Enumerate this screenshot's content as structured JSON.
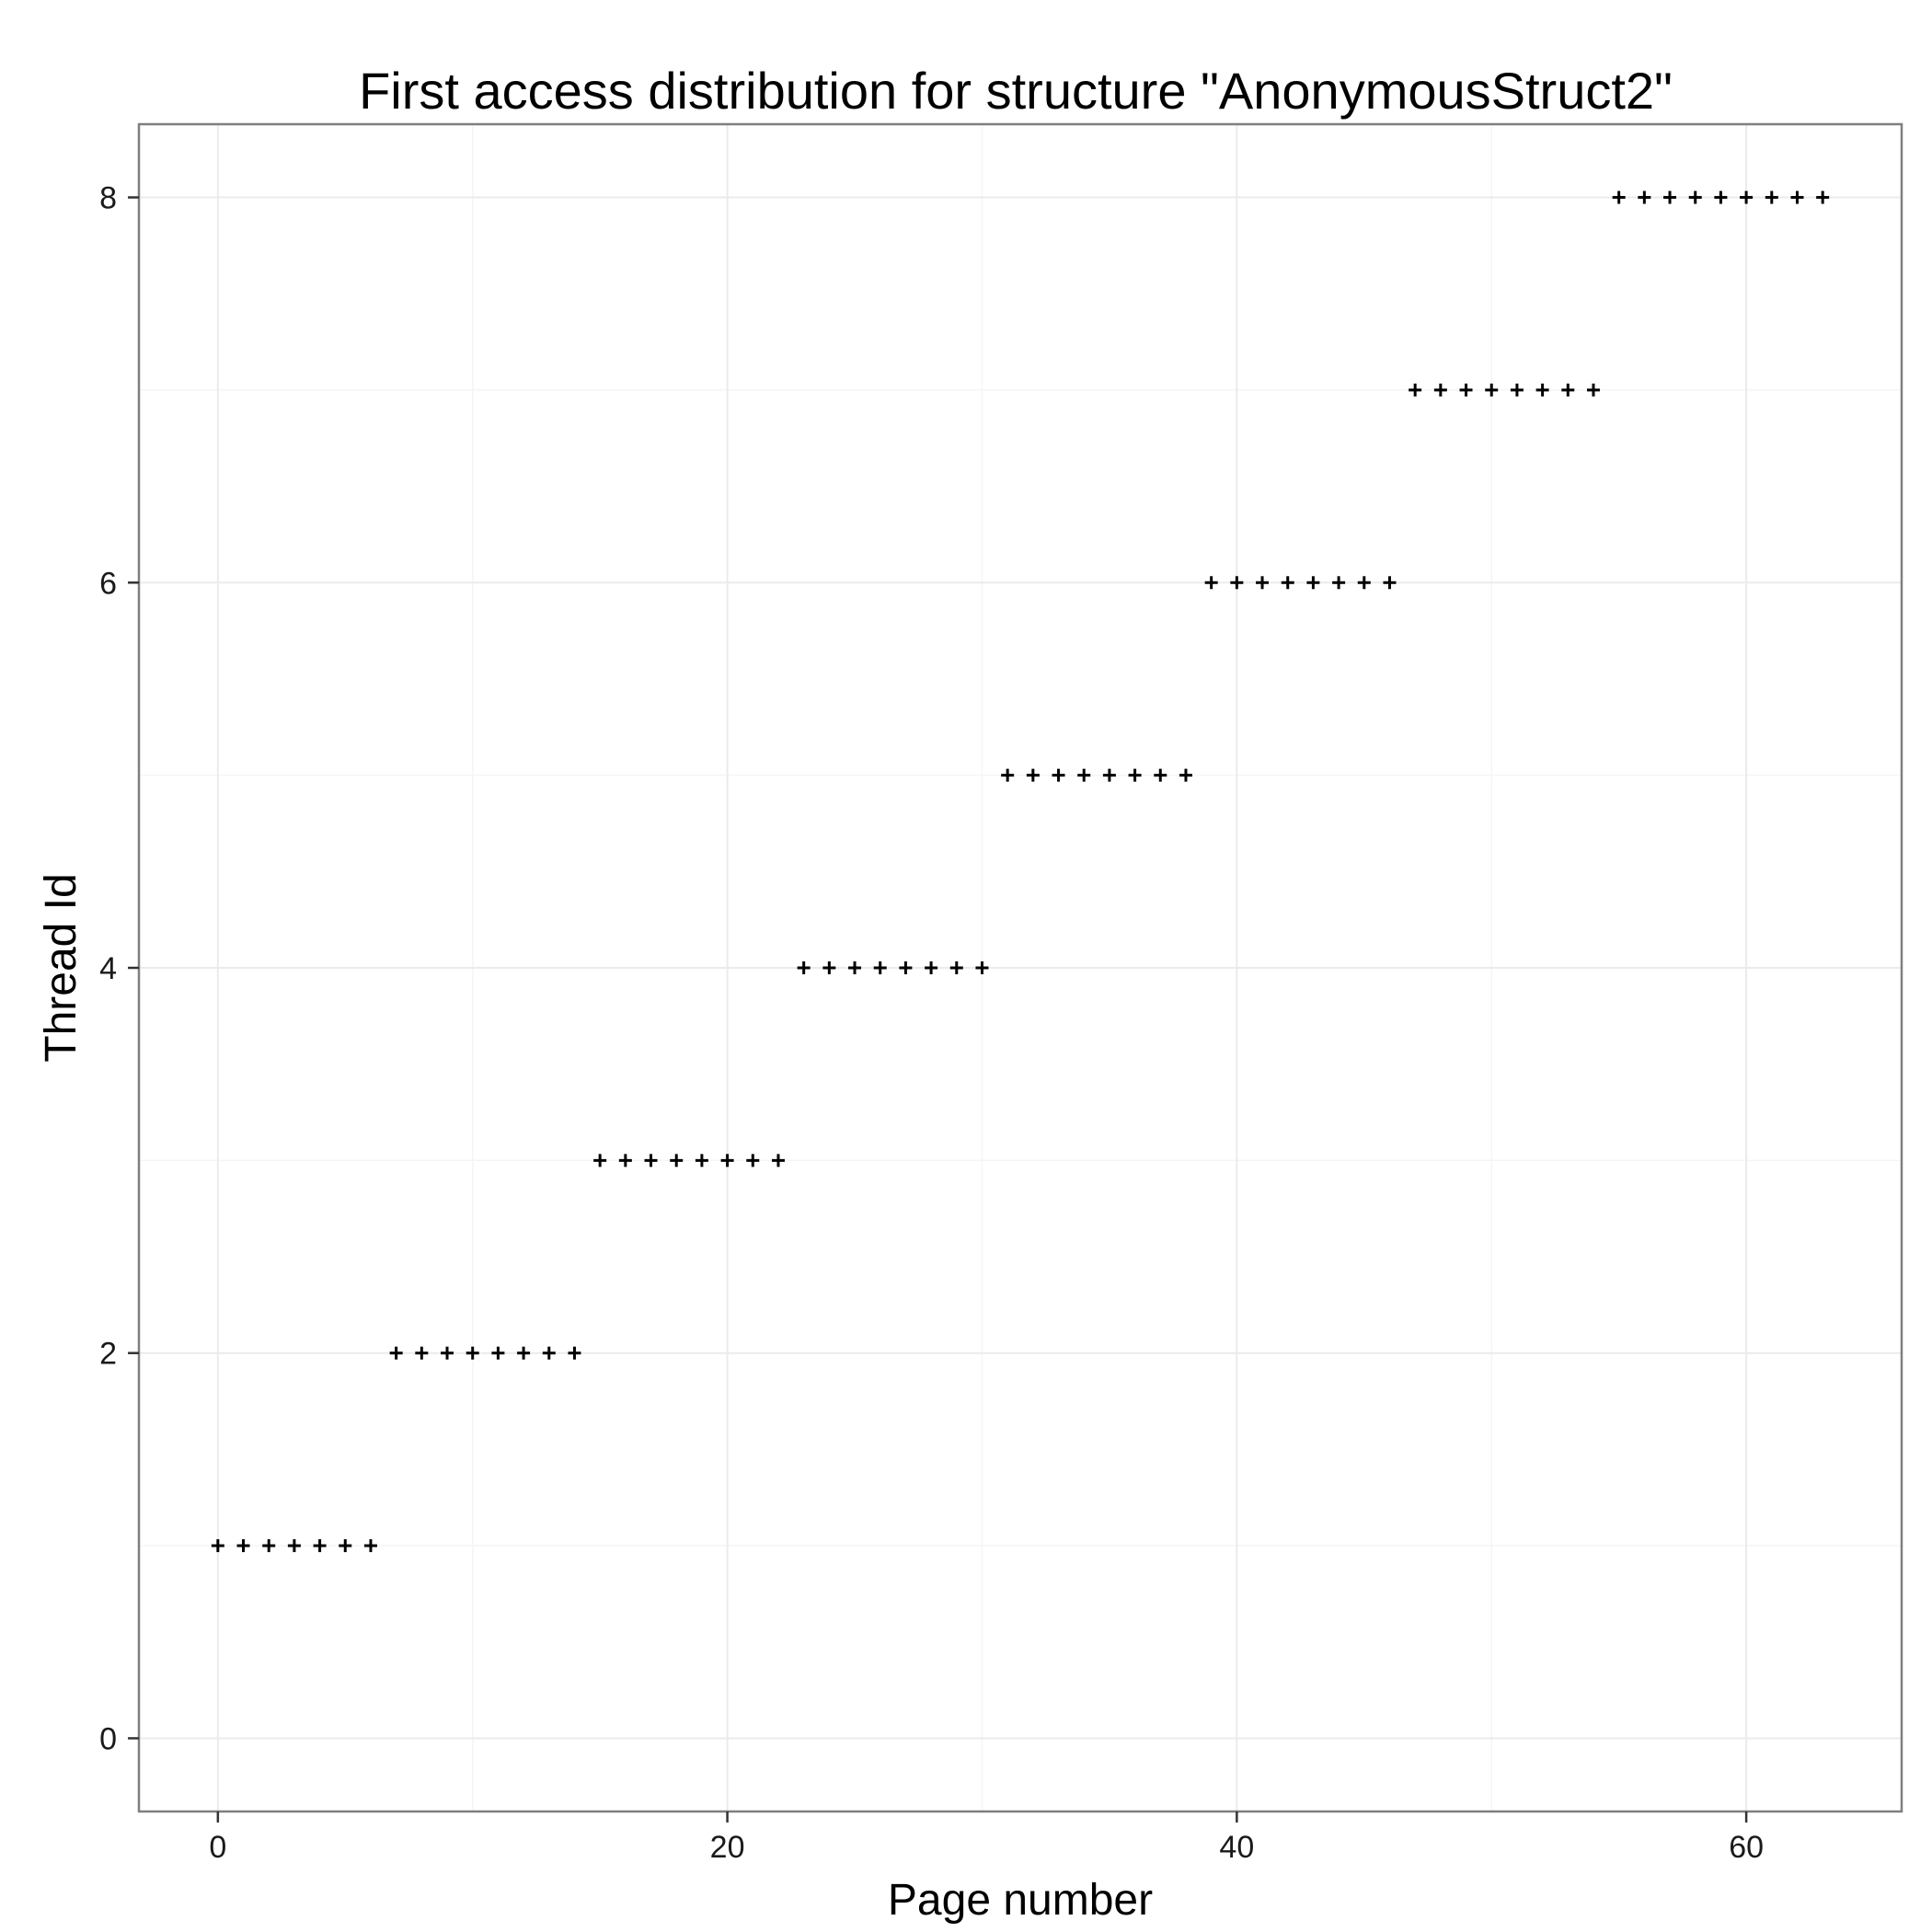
{
  "chart_data": {
    "type": "scatter",
    "title": "First access distribution for structure \"AnonymousStruct2\"",
    "xlabel": "Page number",
    "ylabel": "Thread Id",
    "xlim": [
      -3.1,
      66.1
    ],
    "ylim": [
      -0.38,
      8.38
    ],
    "xticks": [
      0,
      20,
      40,
      60
    ],
    "xtick_labels": [
      "0",
      "20",
      "40",
      "60"
    ],
    "yticks": [
      0,
      2,
      4,
      6,
      8
    ],
    "ytick_labels": [
      "0",
      "2",
      "4",
      "6",
      "8"
    ],
    "grid": true,
    "marker": "plus",
    "series": [
      {
        "points": [
          {
            "x": 0,
            "y": 1
          },
          {
            "x": 1,
            "y": 1
          },
          {
            "x": 2,
            "y": 1
          },
          {
            "x": 3,
            "y": 1
          },
          {
            "x": 4,
            "y": 1
          },
          {
            "x": 5,
            "y": 1
          },
          {
            "x": 6,
            "y": 1
          },
          {
            "x": 7,
            "y": 2
          },
          {
            "x": 8,
            "y": 2
          },
          {
            "x": 9,
            "y": 2
          },
          {
            "x": 10,
            "y": 2
          },
          {
            "x": 11,
            "y": 2
          },
          {
            "x": 12,
            "y": 2
          },
          {
            "x": 13,
            "y": 2
          },
          {
            "x": 14,
            "y": 2
          },
          {
            "x": 15,
            "y": 3
          },
          {
            "x": 16,
            "y": 3
          },
          {
            "x": 17,
            "y": 3
          },
          {
            "x": 18,
            "y": 3
          },
          {
            "x": 19,
            "y": 3
          },
          {
            "x": 20,
            "y": 3
          },
          {
            "x": 21,
            "y": 3
          },
          {
            "x": 22,
            "y": 3
          },
          {
            "x": 23,
            "y": 4
          },
          {
            "x": 24,
            "y": 4
          },
          {
            "x": 25,
            "y": 4
          },
          {
            "x": 26,
            "y": 4
          },
          {
            "x": 27,
            "y": 4
          },
          {
            "x": 28,
            "y": 4
          },
          {
            "x": 29,
            "y": 4
          },
          {
            "x": 30,
            "y": 4
          },
          {
            "x": 31,
            "y": 5
          },
          {
            "x": 32,
            "y": 5
          },
          {
            "x": 33,
            "y": 5
          },
          {
            "x": 34,
            "y": 5
          },
          {
            "x": 35,
            "y": 5
          },
          {
            "x": 36,
            "y": 5
          },
          {
            "x": 37,
            "y": 5
          },
          {
            "x": 38,
            "y": 5
          },
          {
            "x": 39,
            "y": 6
          },
          {
            "x": 40,
            "y": 6
          },
          {
            "x": 41,
            "y": 6
          },
          {
            "x": 42,
            "y": 6
          },
          {
            "x": 43,
            "y": 6
          },
          {
            "x": 44,
            "y": 6
          },
          {
            "x": 45,
            "y": 6
          },
          {
            "x": 46,
            "y": 6
          },
          {
            "x": 47,
            "y": 7
          },
          {
            "x": 48,
            "y": 7
          },
          {
            "x": 49,
            "y": 7
          },
          {
            "x": 50,
            "y": 7
          },
          {
            "x": 51,
            "y": 7
          },
          {
            "x": 52,
            "y": 7
          },
          {
            "x": 53,
            "y": 7
          },
          {
            "x": 54,
            "y": 7
          },
          {
            "x": 55,
            "y": 8
          },
          {
            "x": 56,
            "y": 8
          },
          {
            "x": 57,
            "y": 8
          },
          {
            "x": 58,
            "y": 8
          },
          {
            "x": 59,
            "y": 8
          },
          {
            "x": 60,
            "y": 8
          },
          {
            "x": 61,
            "y": 8
          },
          {
            "x": 62,
            "y": 8
          },
          {
            "x": 63,
            "y": 8
          }
        ]
      }
    ]
  }
}
